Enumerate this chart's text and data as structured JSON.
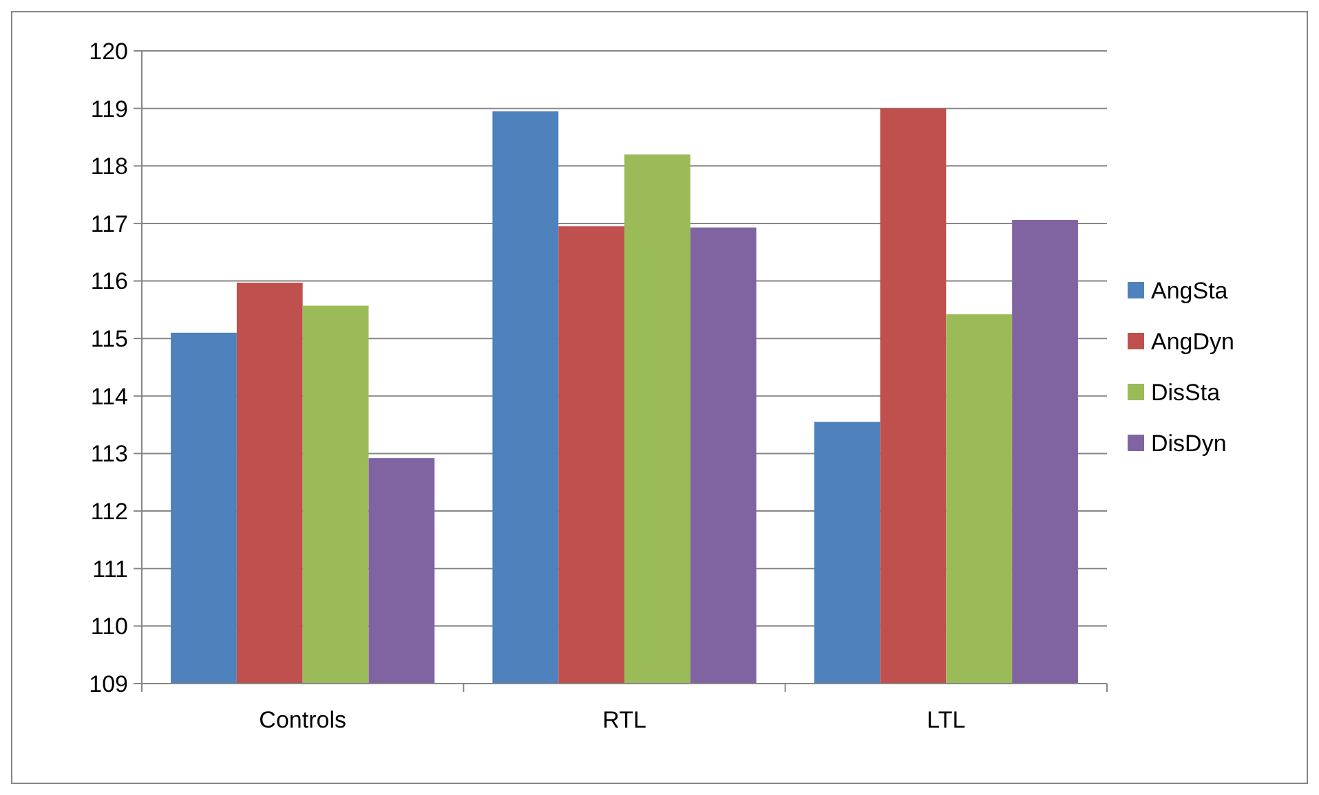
{
  "chart_data": {
    "type": "bar",
    "categories": [
      "Controls",
      "RTL",
      "LTL"
    ],
    "series": [
      {
        "name": "AngSta",
        "color": "#4f81bd",
        "values": [
          115.1,
          118.95,
          113.55
        ]
      },
      {
        "name": "AngDyn",
        "color": "#c0504d",
        "values": [
          115.97,
          116.95,
          119.0
        ]
      },
      {
        "name": "DisSta",
        "color": "#9bbb59",
        "values": [
          115.57,
          118.2,
          115.42
        ]
      },
      {
        "name": "DisDyn",
        "color": "#8064a2",
        "values": [
          112.92,
          116.93,
          117.06
        ]
      }
    ],
    "ylim": [
      109,
      120
    ],
    "yticks": [
      109,
      110,
      111,
      112,
      113,
      114,
      115,
      116,
      117,
      118,
      119,
      120
    ],
    "grid": "y",
    "legend": "right"
  }
}
